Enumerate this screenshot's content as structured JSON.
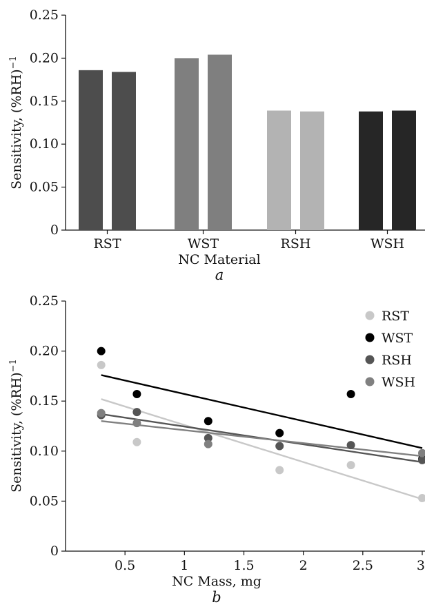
{
  "chart_data": [
    {
      "type": "bar",
      "panel_label": "a",
      "xlabel": "NC Material",
      "ylabel": "Sensitivity, (%RH)",
      "ylabel_sup": "−1",
      "ylim": [
        0,
        0.25
      ],
      "yticks": [
        0,
        0.05,
        0.1,
        0.15,
        0.2,
        0.25
      ],
      "ytick_labels": [
        "0",
        "0.05",
        "0.10",
        "0.15",
        "0.20",
        "0.25"
      ],
      "categories": [
        "RST",
        "WST",
        "RSH",
        "WSH"
      ],
      "series": [
        {
          "values": [
            0.186,
            0.2,
            0.139,
            0.138
          ]
        },
        {
          "values": [
            0.184,
            0.204,
            0.138,
            0.139
          ]
        }
      ],
      "colors": [
        "#4d4d4d",
        "#7f7f7f",
        "#b3b3b3",
        "#262626"
      ]
    },
    {
      "type": "scatter",
      "panel_label": "b",
      "xlabel": "NC Mass, mg",
      "ylabel": "Sensitivity, (%RH)",
      "ylabel_sup": "−1",
      "xlim": [
        0,
        3
      ],
      "ylim": [
        0,
        0.25
      ],
      "xticks": [
        0.5,
        1,
        1.5,
        2,
        2.5,
        3
      ],
      "xtick_labels": [
        "0.5",
        "1",
        "1.5",
        "2",
        "2.5",
        "3"
      ],
      "yticks": [
        0,
        0.05,
        0.1,
        0.15,
        0.2,
        0.25
      ],
      "ytick_labels": [
        "0",
        "0.05",
        "0.10",
        "0.15",
        "0.20",
        "0.25"
      ],
      "legend_position": "top-right",
      "series": [
        {
          "name": "RST",
          "color": "#c8c8c8",
          "x": [
            0.3,
            0.6,
            1.8,
            2.4,
            3.0
          ],
          "y": [
            0.186,
            0.109,
            0.081,
            0.086,
            0.053
          ],
          "fit": [
            [
              0.3,
              0.152
            ],
            [
              3.0,
              0.052
            ]
          ]
        },
        {
          "name": "WST",
          "color": "#000000",
          "x": [
            0.3,
            0.6,
            1.2,
            1.8,
            2.4,
            3.0
          ],
          "y": [
            0.2,
            0.157,
            0.13,
            0.118,
            0.157,
            0.092
          ],
          "fit": [
            [
              0.3,
              0.176
            ],
            [
              3.0,
              0.103
            ]
          ]
        },
        {
          "name": "RSH",
          "color": "#555555",
          "x": [
            0.3,
            0.6,
            1.2,
            1.8,
            2.4,
            3.0
          ],
          "y": [
            0.136,
            0.139,
            0.113,
            0.105,
            0.106,
            0.091
          ],
          "fit": [
            [
              0.3,
              0.137
            ],
            [
              3.0,
              0.089
            ]
          ]
        },
        {
          "name": "WSH",
          "color": "#808080",
          "x": [
            0.3,
            0.6,
            1.2,
            3.0
          ],
          "y": [
            0.138,
            0.128,
            0.107,
            0.098
          ],
          "fit": [
            [
              0.3,
              0.13
            ],
            [
              3.0,
              0.095
            ]
          ]
        }
      ]
    }
  ]
}
